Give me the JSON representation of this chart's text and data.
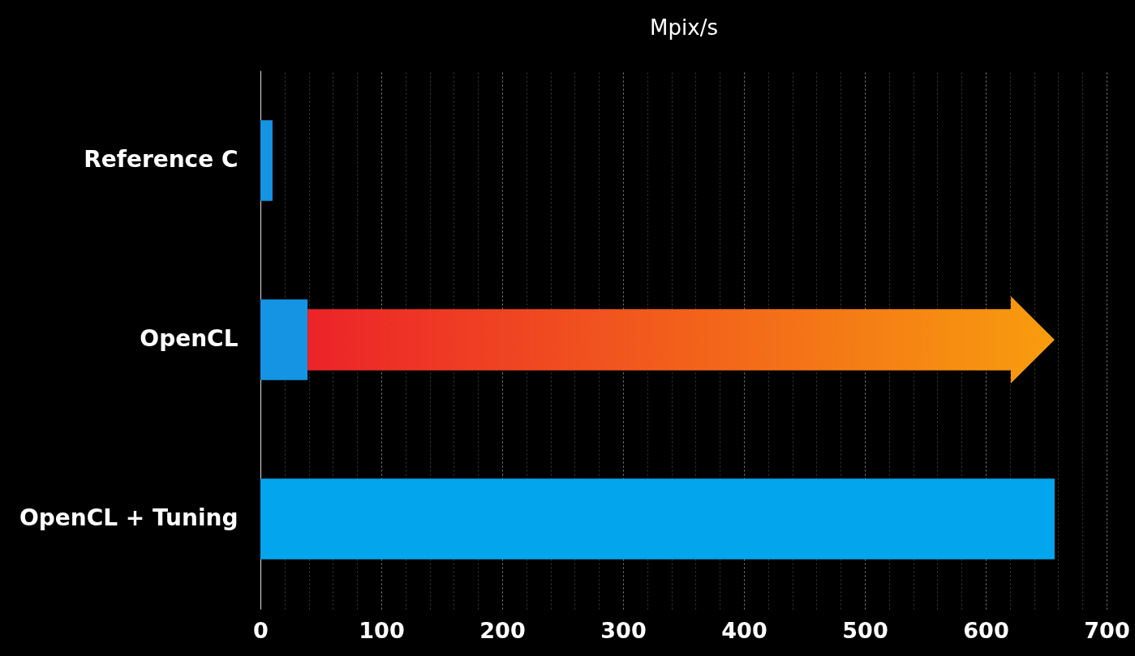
{
  "chart_data": {
    "type": "bar",
    "orientation": "horizontal",
    "xlabel": "Mpix/s",
    "categories": [
      "Reference C",
      "OpenCL",
      "OpenCL + Tuning"
    ],
    "values": [
      10,
      39,
      657
    ],
    "colors": [
      "#1594e4",
      "#1594e4",
      "#03a6ec"
    ],
    "xlim": [
      0,
      700
    ],
    "xticks": [
      0,
      {
        "value": 20,
        "label": null
      },
      {
        "value": 40,
        "label": null
      },
      {
        "value": 60,
        "label": null
      },
      {
        "value": 80,
        "label": null
      },
      100,
      {
        "value": 120,
        "label": null
      },
      {
        "value": 140,
        "label": null
      },
      {
        "value": 160,
        "label": null
      },
      {
        "value": 180,
        "label": null
      },
      200,
      {
        "value": 220,
        "label": null
      },
      {
        "value": 240,
        "label": null
      },
      {
        "value": 260,
        "label": null
      },
      {
        "value": 280,
        "label": null
      },
      300,
      {
        "value": 320,
        "label": null
      },
      {
        "value": 340,
        "label": null
      },
      {
        "value": 360,
        "label": null
      },
      {
        "value": 380,
        "label": null
      },
      400,
      {
        "value": 420,
        "label": null
      },
      {
        "value": 440,
        "label": null
      },
      {
        "value": 460,
        "label": null
      },
      {
        "value": 480,
        "label": null
      },
      500,
      {
        "value": 520,
        "label": null
      },
      {
        "value": 540,
        "label": null
      },
      {
        "value": 560,
        "label": null
      },
      {
        "value": 580,
        "label": null
      },
      600,
      {
        "value": 620,
        "label": null
      },
      {
        "value": 640,
        "label": null
      },
      {
        "value": 660,
        "label": null
      },
      {
        "value": 680,
        "label": null
      },
      700
    ],
    "grid": "x"
  }
}
